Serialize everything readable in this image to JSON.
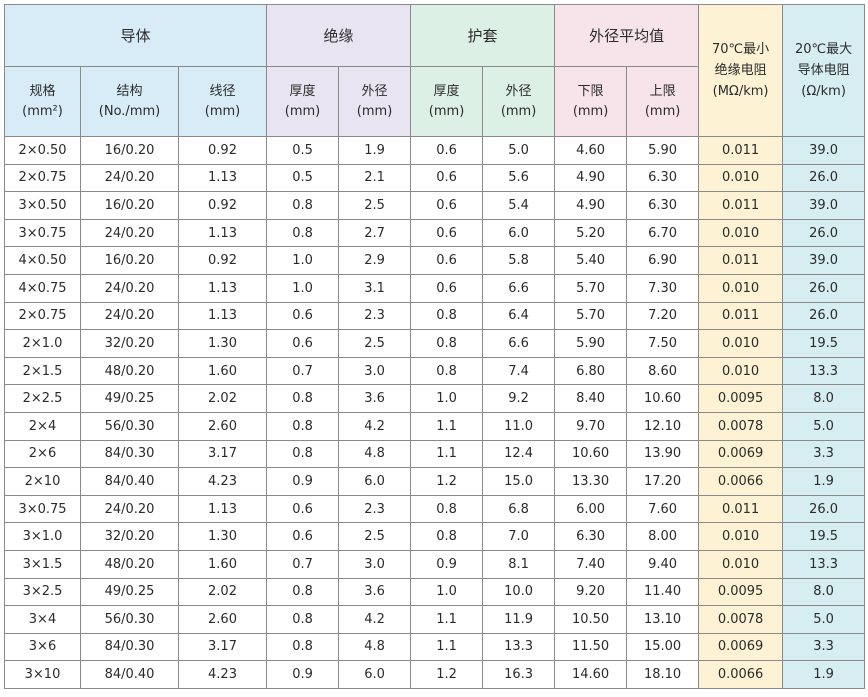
{
  "header": {
    "groups": {
      "conductor": "导体",
      "insulation": "绝缘",
      "sheath": "护套",
      "avg_od": "外径平均值"
    },
    "resistance_70": [
      "70℃最小",
      "绝缘电阻",
      "(MΩ/km)"
    ],
    "resistance_20": [
      "20℃最大",
      "导体电阻",
      "(Ω/km)"
    ],
    "sub": [
      [
        "规格",
        "(mm²)"
      ],
      [
        "结构",
        "(No./mm)"
      ],
      [
        "线径",
        "(mm)"
      ],
      [
        "厚度",
        "(mm)"
      ],
      [
        "外径",
        "(mm)"
      ],
      [
        "厚度",
        "(mm)"
      ],
      [
        "外径",
        "(mm)"
      ],
      [
        "下限",
        "(mm)"
      ],
      [
        "上限",
        "(mm)"
      ]
    ]
  },
  "rows": [
    [
      "2×0.50",
      "16/0.20",
      "0.92",
      "0.5",
      "1.9",
      "0.6",
      "5.0",
      "4.60",
      "5.90",
      "0.011",
      "39.0"
    ],
    [
      "2×0.75",
      "24/0.20",
      "1.13",
      "0.5",
      "2.1",
      "0.6",
      "5.6",
      "4.90",
      "6.30",
      "0.010",
      "26.0"
    ],
    [
      "3×0.50",
      "16/0.20",
      "0.92",
      "0.8",
      "2.5",
      "0.6",
      "5.4",
      "4.90",
      "6.30",
      "0.011",
      "39.0"
    ],
    [
      "3×0.75",
      "24/0.20",
      "1.13",
      "0.8",
      "2.7",
      "0.6",
      "6.0",
      "5.20",
      "6.70",
      "0.010",
      "26.0"
    ],
    [
      "4×0.50",
      "16/0.20",
      "0.92",
      "1.0",
      "2.9",
      "0.6",
      "5.8",
      "5.40",
      "6.90",
      "0.011",
      "39.0"
    ],
    [
      "4×0.75",
      "24/0.20",
      "1.13",
      "1.0",
      "3.1",
      "0.6",
      "6.6",
      "5.70",
      "7.30",
      "0.010",
      "26.0"
    ],
    [
      "2×0.75",
      "24/0.20",
      "1.13",
      "0.6",
      "2.3",
      "0.8",
      "6.4",
      "5.70",
      "7.20",
      "0.011",
      "26.0"
    ],
    [
      "2×1.0",
      "32/0.20",
      "1.30",
      "0.6",
      "2.5",
      "0.8",
      "6.6",
      "5.90",
      "7.50",
      "0.010",
      "19.5"
    ],
    [
      "2×1.5",
      "48/0.20",
      "1.60",
      "0.7",
      "3.0",
      "0.8",
      "7.4",
      "6.80",
      "8.60",
      "0.010",
      "13.3"
    ],
    [
      "2×2.5",
      "49/0.25",
      "2.02",
      "0.8",
      "3.6",
      "1.0",
      "9.2",
      "8.40",
      "10.60",
      "0.0095",
      "8.0"
    ],
    [
      "2×4",
      "56/0.30",
      "2.60",
      "0.8",
      "4.2",
      "1.1",
      "11.0",
      "9.70",
      "12.10",
      "0.0078",
      "5.0"
    ],
    [
      "2×6",
      "84/0.30",
      "3.17",
      "0.8",
      "4.8",
      "1.1",
      "12.4",
      "10.60",
      "13.90",
      "0.0069",
      "3.3"
    ],
    [
      "2×10",
      "84/0.40",
      "4.23",
      "0.9",
      "6.0",
      "1.2",
      "15.0",
      "13.30",
      "17.20",
      "0.0066",
      "1.9"
    ],
    [
      "3×0.75",
      "24/0.20",
      "1.13",
      "0.6",
      "2.3",
      "0.8",
      "6.8",
      "6.00",
      "7.60",
      "0.011",
      "26.0"
    ],
    [
      "3×1.0",
      "32/0.20",
      "1.30",
      "0.6",
      "2.5",
      "0.8",
      "7.0",
      "6.30",
      "8.00",
      "0.010",
      "19.5"
    ],
    [
      "3×1.5",
      "48/0.20",
      "1.60",
      "0.7",
      "3.0",
      "0.9",
      "8.1",
      "7.40",
      "9.40",
      "0.010",
      "13.3"
    ],
    [
      "3×2.5",
      "49/0.25",
      "2.02",
      "0.8",
      "3.6",
      "1.0",
      "10.0",
      "9.20",
      "11.40",
      "0.0095",
      "8.0"
    ],
    [
      "3×4",
      "56/0.30",
      "2.60",
      "0.8",
      "4.2",
      "1.1",
      "11.9",
      "10.50",
      "13.10",
      "0.0078",
      "5.0"
    ],
    [
      "3×6",
      "84/0.30",
      "3.17",
      "0.8",
      "4.8",
      "1.1",
      "13.3",
      "11.50",
      "15.00",
      "0.0069",
      "3.3"
    ],
    [
      "3×10",
      "84/0.40",
      "4.23",
      "0.9",
      "6.0",
      "1.2",
      "16.3",
      "14.60",
      "18.10",
      "0.0066",
      "1.9"
    ]
  ],
  "colors": {
    "conductor": "#d8ecf8",
    "insulation": "#e9e4f2",
    "sheath": "#ddf0e6",
    "avg_od": "#f7e3ea",
    "resistance_70": "#fdf2d4",
    "resistance_20": "#d6eef2"
  }
}
